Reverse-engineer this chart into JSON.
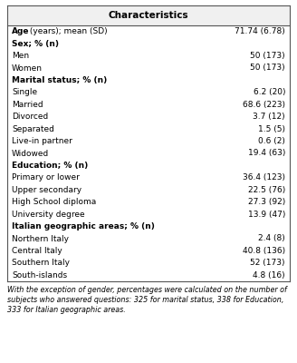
{
  "title": "Characteristics",
  "rows": [
    {
      "label": "Age (years); mean (SD)",
      "value": "71.74 (6.78)",
      "bold_label": false,
      "age_special": true
    },
    {
      "label": "Sex; % (n)",
      "value": "",
      "bold_label": true
    },
    {
      "label": "Men",
      "value": "50 (173)",
      "bold_label": false
    },
    {
      "label": "Women",
      "value": "50 (173)",
      "bold_label": false
    },
    {
      "label": "Marital status; % (n)",
      "value": "",
      "bold_label": true
    },
    {
      "label": "Single",
      "value": "6.2 (20)",
      "bold_label": false
    },
    {
      "label": "Married",
      "value": "68.6 (223)",
      "bold_label": false
    },
    {
      "label": "Divorced",
      "value": "3.7 (12)",
      "bold_label": false
    },
    {
      "label": "Separated",
      "value": "1.5 (5)",
      "bold_label": false
    },
    {
      "label": "Live-in partner",
      "value": "0.6 (2)",
      "bold_label": false
    },
    {
      "label": "Widowed",
      "value": "19.4 (63)",
      "bold_label": false
    },
    {
      "label": "Education; % (n)",
      "value": "",
      "bold_label": true
    },
    {
      "label": "Primary or lower",
      "value": "36.4 (123)",
      "bold_label": false
    },
    {
      "label": "Upper secondary",
      "value": "22.5 (76)",
      "bold_label": false
    },
    {
      "label": "High School diploma",
      "value": "27.3 (92)",
      "bold_label": false
    },
    {
      "label": "University degree",
      "value": "13.9 (47)",
      "bold_label": false
    },
    {
      "label": "Italian geographic areas; % (n)",
      "value": "",
      "bold_label": true
    },
    {
      "label": "Northern Italy",
      "value": "2.4 (8)",
      "bold_label": false
    },
    {
      "label": "Central Italy",
      "value": "40.8 (136)",
      "bold_label": false
    },
    {
      "label": "Southern Italy",
      "value": "52 (173)",
      "bold_label": false
    },
    {
      "label": "South-islands",
      "value": "4.8 (16)",
      "bold_label": false
    }
  ],
  "footnote": "With the exception of gender, percentages were calculated on the number of subjects who answered questions: 325 for marital status, 338 for Education, 333 for Italian geographic areas.",
  "title_fontsize": 7.5,
  "row_fontsize": 6.5,
  "footnote_fontsize": 5.8,
  "background_color": "#ffffff",
  "header_bg": "#f0f0f0",
  "border_color": "#555555",
  "text_color": "#000000"
}
